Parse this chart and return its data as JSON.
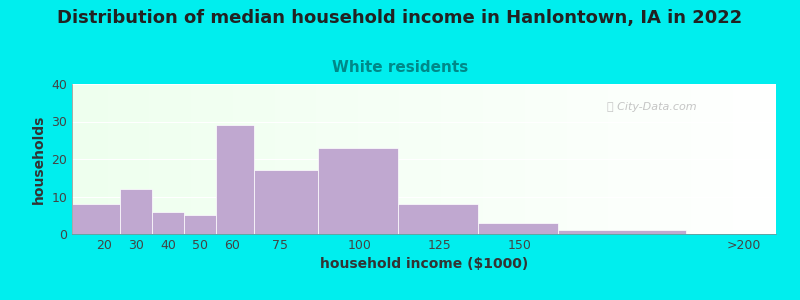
{
  "title": "Distribution of median household income in Hanlontown, IA in 2022",
  "subtitle": "White residents",
  "xlabel": "household income ($1000)",
  "ylabel": "households",
  "bg_color": "#00EEEE",
  "bar_color": "#C0A8D0",
  "bar_edge_color": "#C0A8D0",
  "categories": [
    "20",
    "30",
    "40",
    "50",
    "60",
    "75",
    "100",
    "125",
    "150",
    ">200"
  ],
  "bin_lefts": [
    10,
    25,
    35,
    45,
    55,
    67,
    87,
    112,
    137,
    162
  ],
  "bin_widths": [
    15,
    10,
    10,
    10,
    12,
    20,
    25,
    25,
    25,
    40
  ],
  "values": [
    8,
    12,
    6,
    5,
    29,
    17,
    23,
    8,
    3,
    1
  ],
  "tick_positions": [
    20,
    30,
    40,
    50,
    60,
    75,
    100,
    125,
    150,
    220
  ],
  "tick_labels": [
    "20",
    "30",
    "40",
    "50",
    "60",
    "75",
    "100",
    "125",
    "150",
    ">200"
  ],
  "xlim": [
    10,
    230
  ],
  "ylim": [
    0,
    40
  ],
  "yticks": [
    0,
    10,
    20,
    30,
    40
  ],
  "watermark": "ⓘ City-Data.com",
  "title_fontsize": 13,
  "subtitle_fontsize": 11,
  "subtitle_color": "#008888",
  "axis_label_fontsize": 10,
  "tick_fontsize": 9
}
